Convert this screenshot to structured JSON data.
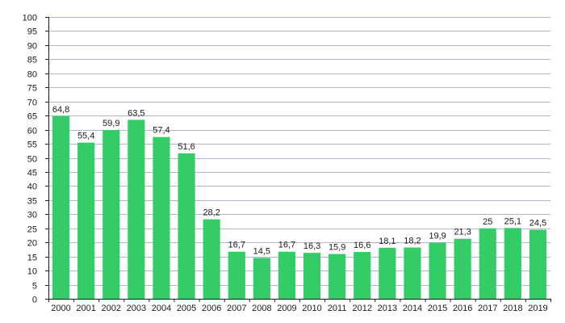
{
  "chart_data": {
    "type": "bar",
    "title": "",
    "xlabel": "",
    "ylabel": "",
    "categories": [
      "2000",
      "2001",
      "2002",
      "2003",
      "2004",
      "2005",
      "2006",
      "2007",
      "2008",
      "2009",
      "2010",
      "2011",
      "2012",
      "2013",
      "2014",
      "2015",
      "2016",
      "2017",
      "2018",
      "2019"
    ],
    "values": [
      64.8,
      55.4,
      59.9,
      63.5,
      57.4,
      51.6,
      28.2,
      16.7,
      14.5,
      16.7,
      16.3,
      15.9,
      16.6,
      18.1,
      18.2,
      19.9,
      21.3,
      25,
      25.1,
      24.5
    ],
    "value_labels": [
      "64,8",
      "55,4",
      "59,9",
      "63,5",
      "57,4",
      "51,6",
      "28,2",
      "16,7",
      "14,5",
      "16,7",
      "16,3",
      "15,9",
      "16,6",
      "18,1",
      "18,2",
      "19,9",
      "21,3",
      "25",
      "25,1",
      "24,5"
    ],
    "ylim": [
      0,
      100
    ],
    "yticks": [
      0,
      5,
      10,
      15,
      20,
      25,
      30,
      35,
      40,
      45,
      50,
      55,
      60,
      65,
      70,
      75,
      80,
      85,
      90,
      95,
      100
    ],
    "grid": true,
    "legend": "none",
    "colors": {
      "bar": "#33cc66",
      "grid": "#b3b3d9",
      "axis": "#1a1a1a",
      "text": "#1a1a1a"
    }
  }
}
